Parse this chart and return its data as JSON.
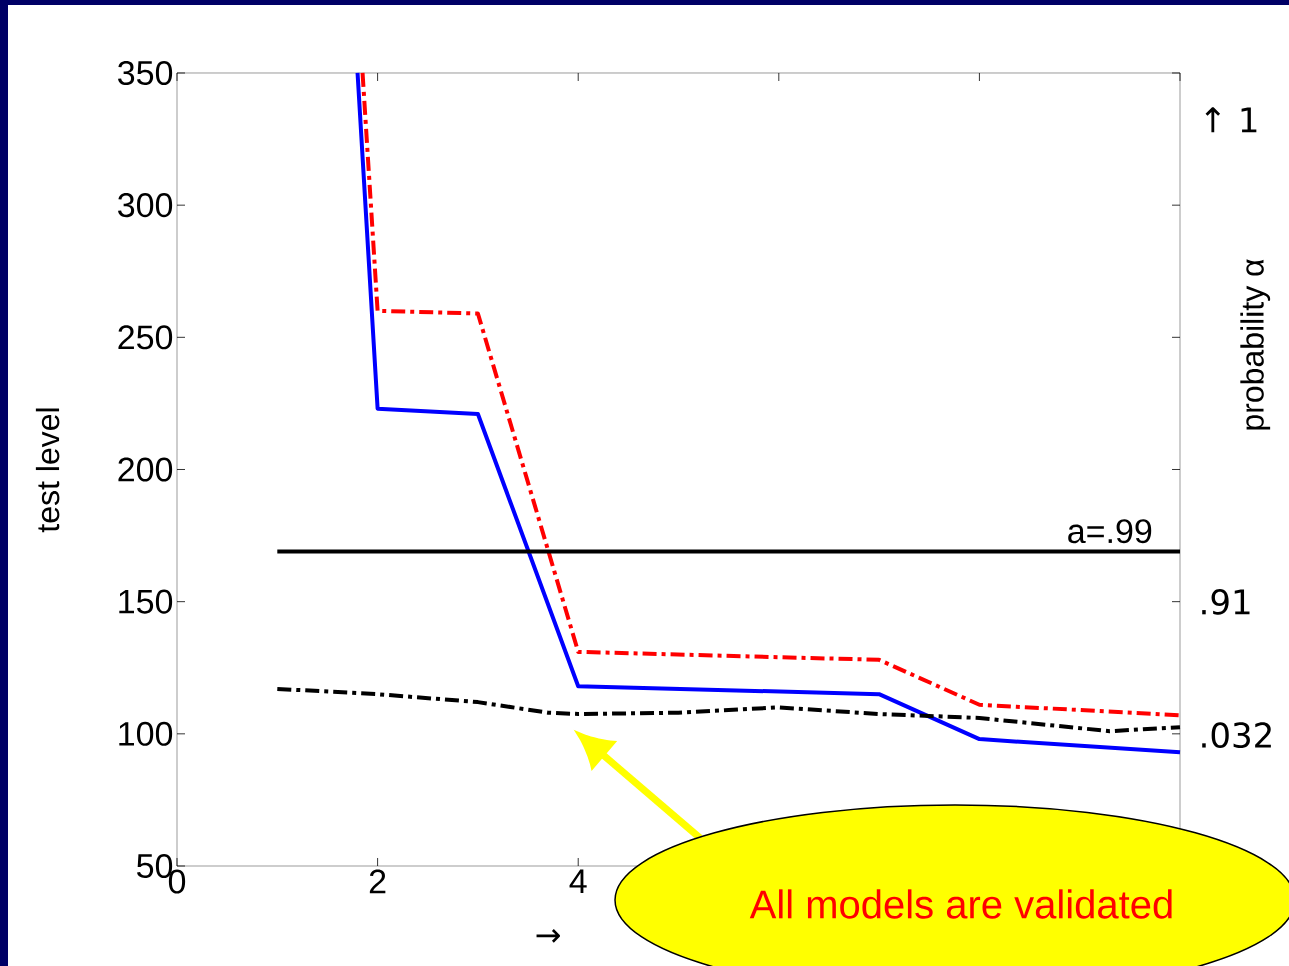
{
  "chart_data": {
    "type": "line",
    "xlabel": "→",
    "ylabel": "test level",
    "y2label": "probability α",
    "xlim": [
      0,
      10
    ],
    "xticks": [
      0,
      2,
      4,
      {
        "value": 6,
        "label": null
      },
      {
        "value": 8,
        "label": null
      },
      {
        "value": 10,
        "label": null
      }
    ],
    "ylim": [
      50,
      350
    ],
    "yticks": [
      50,
      100,
      150,
      200,
      250,
      300,
      350
    ],
    "series": [
      {
        "color": "#0000ff",
        "line_style": "solid",
        "x": [
          1.8,
          2,
          3,
          4,
          7,
          8,
          10
        ],
        "values": [
          350,
          223,
          221,
          118,
          115,
          98,
          93
        ]
      },
      {
        "color": "#ff0000",
        "line_style": "dashdot",
        "x": [
          1.85,
          2,
          3,
          4,
          7,
          8,
          10
        ],
        "values": [
          350,
          260,
          259,
          131,
          128,
          111,
          107
        ]
      },
      {
        "color": "#000000",
        "line_style": "dashdot",
        "x": [
          1,
          2,
          3,
          3.7,
          4,
          5,
          6,
          7,
          8,
          9.3,
          10
        ],
        "values": [
          117,
          115,
          112,
          108,
          107.5,
          108,
          110,
          107.5,
          106,
          101,
          102.5
        ]
      },
      {
        "color": "#000000",
        "line_style": "solid",
        "x": [
          1,
          10
        ],
        "values": [
          169,
          169
        ]
      }
    ],
    "annotations": [
      "All models are validated",
      {
        "text": "a=.99",
        "x": 9.3,
        "y": 169
      },
      "↑ 1",
      ".91",
      ".032"
    ]
  }
}
